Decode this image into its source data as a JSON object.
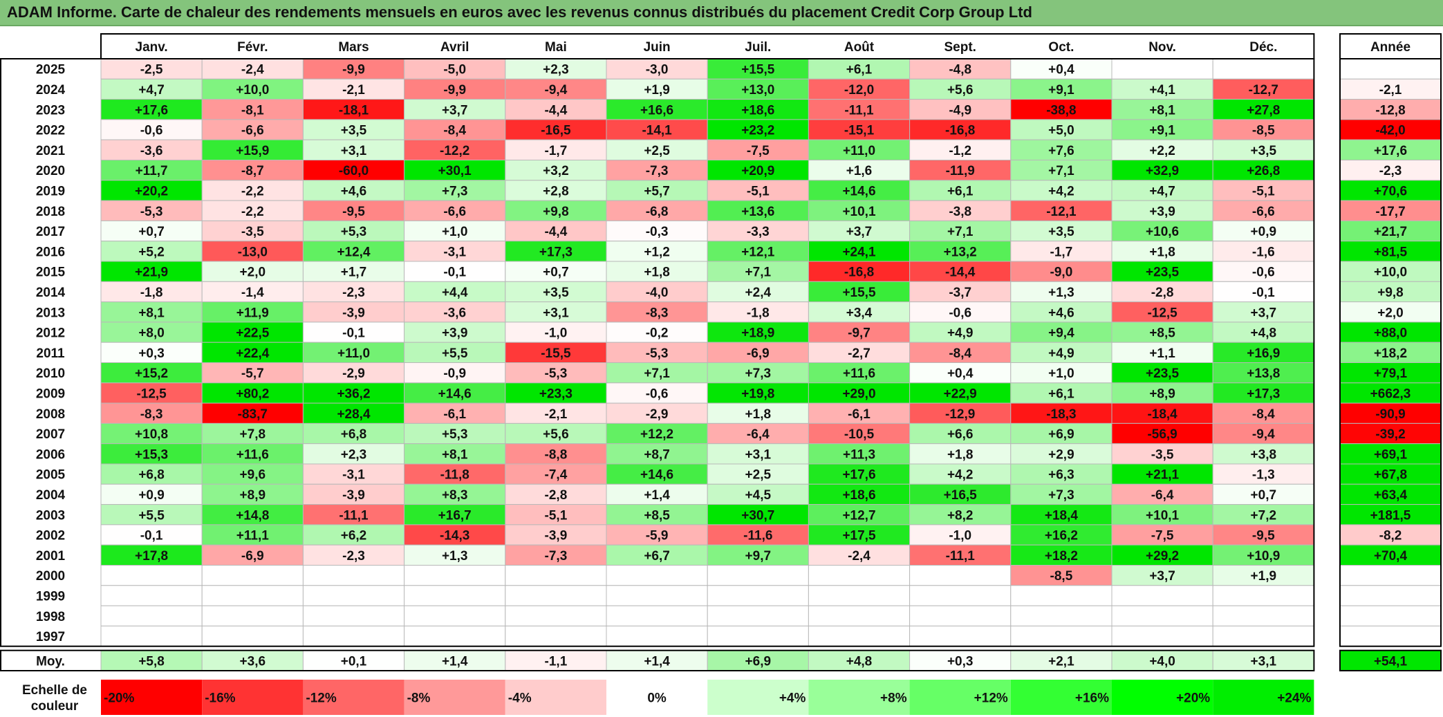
{
  "title": "ADAM Informe. Carte de chaleur des rendements mensuels en euros avec les revenus connus distribués du placement Credit Corp Group Ltd",
  "chart_data": {
    "type": "heatmap",
    "months": [
      "Janv.",
      "Févr.",
      "Mars",
      "Avril",
      "Mai",
      "Juin",
      "Juil.",
      "Août",
      "Sept.",
      "Oct.",
      "Nov.",
      "Déc."
    ],
    "annual_header": "Année",
    "rows": [
      {
        "year": "2025",
        "values": [
          "-2,5",
          "-2,4",
          "-9,9",
          "-5,0",
          "+2,3",
          "-3,0",
          "+15,5",
          "+6,1",
          "-4,8",
          "+0,4",
          "",
          ""
        ],
        "annual": ""
      },
      {
        "year": "2024",
        "values": [
          "+4,7",
          "+10,0",
          "-2,1",
          "-9,9",
          "-9,4",
          "+1,9",
          "+13,0",
          "-12,0",
          "+5,6",
          "+9,1",
          "+4,1",
          "-12,7"
        ],
        "annual": "-2,1"
      },
      {
        "year": "2023",
        "values": [
          "+17,6",
          "-8,1",
          "-18,1",
          "+3,7",
          "-4,4",
          "+16,6",
          "+18,6",
          "-11,1",
          "-4,9",
          "-38,8",
          "+8,1",
          "+27,8"
        ],
        "annual": "-12,8"
      },
      {
        "year": "2022",
        "values": [
          "-0,6",
          "-6,6",
          "+3,5",
          "-8,4",
          "-16,5",
          "-14,1",
          "+23,2",
          "-15,1",
          "-16,8",
          "+5,0",
          "+9,1",
          "-8,5"
        ],
        "annual": "-42,0"
      },
      {
        "year": "2021",
        "values": [
          "-3,6",
          "+15,9",
          "+3,1",
          "-12,2",
          "-1,7",
          "+2,5",
          "-7,5",
          "+11,0",
          "-1,2",
          "+7,6",
          "+2,2",
          "+3,5"
        ],
        "annual": "+17,6"
      },
      {
        "year": "2020",
        "values": [
          "+11,7",
          "-8,7",
          "-60,0",
          "+30,1",
          "+3,2",
          "-7,3",
          "+20,9",
          "+1,6",
          "-11,9",
          "+7,1",
          "+32,9",
          "+26,8"
        ],
        "annual": "-2,3"
      },
      {
        "year": "2019",
        "values": [
          "+20,2",
          "-2,2",
          "+4,6",
          "+7,3",
          "+2,8",
          "+5,7",
          "-5,1",
          "+14,6",
          "+6,1",
          "+4,2",
          "+4,7",
          "-5,1"
        ],
        "annual": "+70,6"
      },
      {
        "year": "2018",
        "values": [
          "-5,3",
          "-2,2",
          "-9,5",
          "-6,6",
          "+9,8",
          "-6,8",
          "+13,6",
          "+10,1",
          "-3,8",
          "-12,1",
          "+3,9",
          "-6,6"
        ],
        "annual": "-17,7"
      },
      {
        "year": "2017",
        "values": [
          "+0,7",
          "-3,5",
          "+5,3",
          "+1,0",
          "-4,4",
          "-0,3",
          "-3,3",
          "+3,7",
          "+7,1",
          "+3,5",
          "+10,6",
          "+0,9"
        ],
        "annual": "+21,7"
      },
      {
        "year": "2016",
        "values": [
          "+5,2",
          "-13,0",
          "+12,4",
          "-3,1",
          "+17,3",
          "+1,2",
          "+12,1",
          "+24,1",
          "+13,2",
          "-1,7",
          "+1,8",
          "-1,6"
        ],
        "annual": "+81,5"
      },
      {
        "year": "2015",
        "values": [
          "+21,9",
          "+2,0",
          "+1,7",
          "-0,1",
          "+0,7",
          "+1,8",
          "+7,1",
          "-16,8",
          "-14,4",
          "-9,0",
          "+23,5",
          "-0,6"
        ],
        "annual": "+10,0"
      },
      {
        "year": "2014",
        "values": [
          "-1,8",
          "-1,4",
          "-2,3",
          "+4,4",
          "+3,5",
          "-4,0",
          "+2,4",
          "+15,5",
          "-3,7",
          "+1,3",
          "-2,8",
          "-0,1"
        ],
        "annual": "+9,8"
      },
      {
        "year": "2013",
        "values": [
          "+8,1",
          "+11,9",
          "-3,9",
          "-3,6",
          "+3,1",
          "-8,3",
          "-1,8",
          "+3,4",
          "-0,6",
          "+4,6",
          "-12,5",
          "+3,7"
        ],
        "annual": "+2,0"
      },
      {
        "year": "2012",
        "values": [
          "+8,0",
          "+22,5",
          "-0,1",
          "+3,9",
          "-1,0",
          "-0,2",
          "+18,9",
          "-9,7",
          "+4,9",
          "+9,4",
          "+8,5",
          "+4,8"
        ],
        "annual": "+88,0"
      },
      {
        "year": "2011",
        "values": [
          "+0,3",
          "+22,4",
          "+11,0",
          "+5,5",
          "-15,5",
          "-5,3",
          "-6,9",
          "-2,7",
          "-8,4",
          "+4,9",
          "+1,1",
          "+16,9"
        ],
        "annual": "+18,2"
      },
      {
        "year": "2010",
        "values": [
          "+15,2",
          "-5,7",
          "-2,9",
          "-0,9",
          "-5,3",
          "+7,1",
          "+7,3",
          "+11,6",
          "+0,4",
          "+1,0",
          "+23,5",
          "+13,8"
        ],
        "annual": "+79,1"
      },
      {
        "year": "2009",
        "values": [
          "-12,5",
          "+80,2",
          "+36,2",
          "+14,6",
          "+23,3",
          "-0,6",
          "+19,8",
          "+29,0",
          "+22,9",
          "+6,1",
          "+8,9",
          "+17,3"
        ],
        "annual": "+662,3"
      },
      {
        "year": "2008",
        "values": [
          "-8,3",
          "-83,7",
          "+28,4",
          "-6,1",
          "-2,1",
          "-2,9",
          "+1,8",
          "-6,1",
          "-12,9",
          "-18,3",
          "-18,4",
          "-8,4"
        ],
        "annual": "-90,9"
      },
      {
        "year": "2007",
        "values": [
          "+10,8",
          "+7,8",
          "+6,8",
          "+5,3",
          "+5,6",
          "+12,2",
          "-6,4",
          "-10,5",
          "+6,6",
          "+6,9",
          "-56,9",
          "-9,4"
        ],
        "annual": "-39,2"
      },
      {
        "year": "2006",
        "values": [
          "+15,3",
          "+11,6",
          "+2,3",
          "+8,1",
          "-8,8",
          "+8,7",
          "+3,1",
          "+11,3",
          "+1,8",
          "+2,9",
          "-3,5",
          "+3,8"
        ],
        "annual": "+69,1"
      },
      {
        "year": "2005",
        "values": [
          "+6,8",
          "+9,6",
          "-3,1",
          "-11,8",
          "-7,4",
          "+14,6",
          "+2,5",
          "+17,6",
          "+4,2",
          "+6,3",
          "+21,1",
          "-1,3"
        ],
        "annual": "+67,8"
      },
      {
        "year": "2004",
        "values": [
          "+0,9",
          "+8,9",
          "-3,9",
          "+8,3",
          "-2,8",
          "+1,4",
          "+4,5",
          "+18,6",
          "+16,5",
          "+7,3",
          "-6,4",
          "+0,7"
        ],
        "annual": "+63,4"
      },
      {
        "year": "2003",
        "values": [
          "+5,5",
          "+14,8",
          "-11,1",
          "+16,7",
          "-5,1",
          "+8,5",
          "+30,7",
          "+12,7",
          "+8,2",
          "+18,4",
          "+10,1",
          "+7,2"
        ],
        "annual": "+181,5"
      },
      {
        "year": "2002",
        "values": [
          "-0,1",
          "+11,1",
          "+6,2",
          "-14,3",
          "-3,9",
          "-5,9",
          "-11,6",
          "+17,5",
          "-1,0",
          "+16,2",
          "-7,5",
          "-9,5"
        ],
        "annual": "-8,2"
      },
      {
        "year": "2001",
        "values": [
          "+17,8",
          "-6,9",
          "-2,3",
          "+1,3",
          "-7,3",
          "+6,7",
          "+9,7",
          "-2,4",
          "-11,1",
          "+18,2",
          "+29,2",
          "+10,9"
        ],
        "annual": "+70,4"
      },
      {
        "year": "2000",
        "values": [
          "",
          "",
          "",
          "",
          "",
          "",
          "",
          "",
          "",
          "-8,5",
          "+3,7",
          "+1,9"
        ],
        "annual": ""
      },
      {
        "year": "1999",
        "values": [
          "",
          "",
          "",
          "",
          "",
          "",
          "",
          "",
          "",
          "",
          "",
          ""
        ],
        "annual": ""
      },
      {
        "year": "1998",
        "values": [
          "",
          "",
          "",
          "",
          "",
          "",
          "",
          "",
          "",
          "",
          "",
          ""
        ],
        "annual": ""
      },
      {
        "year": "1997",
        "values": [
          "",
          "",
          "",
          "",
          "",
          "",
          "",
          "",
          "",
          "",
          "",
          ""
        ],
        "annual": ""
      }
    ],
    "average": {
      "label": "Moy.",
      "values": [
        "+5,8",
        "+3,6",
        "+0,1",
        "+1,4",
        "-1,1",
        "+1,4",
        "+6,9",
        "+4,8",
        "+0,3",
        "+2,1",
        "+4,0",
        "+3,1"
      ],
      "annual": "+54,1"
    },
    "color_scale": {
      "label_line1": "Echelle de",
      "label_line2": "couleur",
      "stops": [
        "-20%",
        "-16%",
        "-12%",
        "-8%",
        "-4%",
        "0%",
        "+4%",
        "+8%",
        "+12%",
        "+16%",
        "+20%",
        "+24%"
      ],
      "colors": [
        "#ff0000",
        "#ff3333",
        "#ff6666",
        "#ff9999",
        "#ffcccc",
        "#ffffff",
        "#ccffcc",
        "#99ff99",
        "#66ff66",
        "#33ff33",
        "#00ff00",
        "#00ee00"
      ]
    },
    "color_negative": "#ff0000",
    "color_positive": "#00e600"
  }
}
